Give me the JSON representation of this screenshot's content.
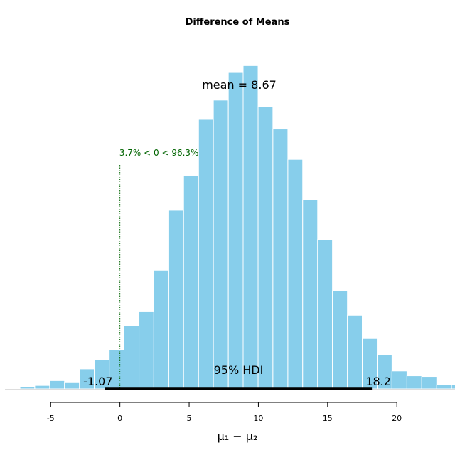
{
  "chart_data": {
    "type": "bar",
    "title": "Difference of Means",
    "xlabel": "μ₁ − μ₂",
    "ylabel": "",
    "xlim": [
      -8.3,
      24.2
    ],
    "ylim": [
      0,
      490
    ],
    "grid": false,
    "bar_color": "#87ceeb",
    "bar_edge_color": "#ffffff",
    "x_ticks": [
      -5,
      0,
      5,
      10,
      15,
      20
    ],
    "bins": [
      {
        "x0": -8.3,
        "x1": -7.22,
        "count": 1
      },
      {
        "x0": -7.22,
        "x1": -6.15,
        "count": 3
      },
      {
        "x0": -6.15,
        "x1": -5.07,
        "count": 5
      },
      {
        "x0": -5.07,
        "x1": -4.0,
        "count": 12
      },
      {
        "x0": -4.0,
        "x1": -2.92,
        "count": 9
      },
      {
        "x0": -2.92,
        "x1": -1.85,
        "count": 29
      },
      {
        "x0": -1.85,
        "x1": -0.77,
        "count": 42
      },
      {
        "x0": -0.77,
        "x1": 0.3,
        "count": 57
      },
      {
        "x0": 0.3,
        "x1": 1.38,
        "count": 92
      },
      {
        "x0": 1.38,
        "x1": 2.45,
        "count": 112
      },
      {
        "x0": 2.45,
        "x1": 3.53,
        "count": 172
      },
      {
        "x0": 3.53,
        "x1": 4.6,
        "count": 259
      },
      {
        "x0": 4.6,
        "x1": 5.68,
        "count": 310
      },
      {
        "x0": 5.68,
        "x1": 6.75,
        "count": 391
      },
      {
        "x0": 6.75,
        "x1": 7.83,
        "count": 419
      },
      {
        "x0": 7.83,
        "x1": 8.9,
        "count": 460
      },
      {
        "x0": 8.9,
        "x1": 9.98,
        "count": 469
      },
      {
        "x0": 9.98,
        "x1": 11.05,
        "count": 410
      },
      {
        "x0": 11.05,
        "x1": 12.13,
        "count": 377
      },
      {
        "x0": 12.13,
        "x1": 13.2,
        "count": 333
      },
      {
        "x0": 13.2,
        "x1": 14.28,
        "count": 274
      },
      {
        "x0": 14.28,
        "x1": 15.35,
        "count": 217
      },
      {
        "x0": 15.35,
        "x1": 16.43,
        "count": 142
      },
      {
        "x0": 16.43,
        "x1": 17.5,
        "count": 107
      },
      {
        "x0": 17.5,
        "x1": 18.58,
        "count": 73
      },
      {
        "x0": 18.58,
        "x1": 19.65,
        "count": 50
      },
      {
        "x0": 19.65,
        "x1": 20.73,
        "count": 26
      },
      {
        "x0": 20.73,
        "x1": 21.8,
        "count": 19
      },
      {
        "x0": 21.8,
        "x1": 22.88,
        "count": 18
      },
      {
        "x0": 22.88,
        "x1": 23.95,
        "count": 6
      },
      {
        "x0": 23.95,
        "x1": 25.0,
        "count": 6
      }
    ],
    "mean": {
      "value": 8.67,
      "label": "mean = 8.67"
    },
    "hdi": {
      "low": -1.07,
      "high": 18.2,
      "label": "95% HDI",
      "low_label": "-1.07",
      "high_label": "18.2"
    },
    "comparison": {
      "value": 0,
      "label": "3.7% < 0 < 96.3%",
      "color": "#006400"
    }
  }
}
